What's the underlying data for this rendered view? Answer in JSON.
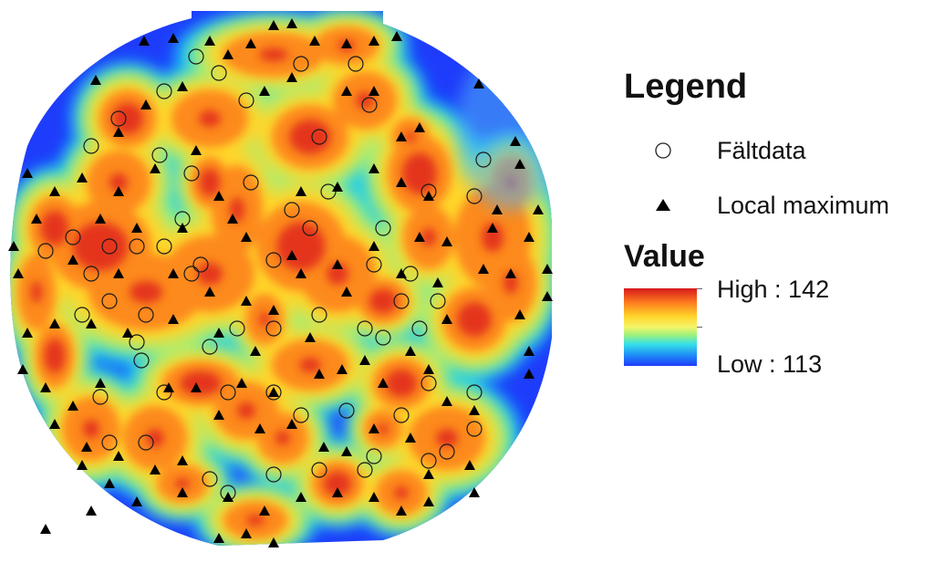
{
  "legend": {
    "title": "Legend",
    "items": [
      {
        "label": "Fältdata",
        "symbol": "open-circle-icon"
      },
      {
        "label": "Local maximum",
        "symbol": "filled-triangle-icon"
      }
    ]
  },
  "value_legend": {
    "title": "Value",
    "high_label": "High : 142",
    "low_label": "Low : 113",
    "high": 142,
    "low": 113,
    "colors": [
      "#d7191c",
      "#fd7a1e",
      "#ffd52a",
      "#f5f56a",
      "#9ef27a",
      "#35e0e8",
      "#1f8df7",
      "#1e3cfb"
    ]
  },
  "map": {
    "background_color": "#1e3cfb",
    "hotspot_color": "#d7191c"
  }
}
